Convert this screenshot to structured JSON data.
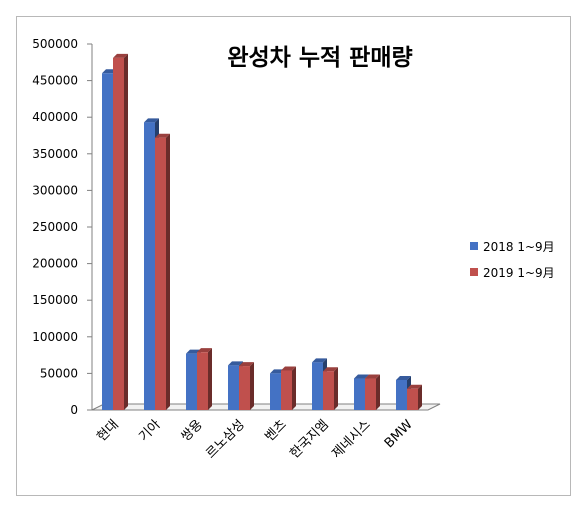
{
  "chart_data": {
    "type": "bar",
    "title": "완성차 누적 판매량",
    "categories": [
      "현대",
      "기아",
      "쌍용",
      "르노삼성",
      "벤츠",
      "한국지엠",
      "제네시스",
      "BMW"
    ],
    "series": [
      {
        "name": "2018 1~9月",
        "color": "#4472c4",
        "values": [
          460000,
          393000,
          77000,
          61000,
          50000,
          65000,
          43000,
          41000
        ]
      },
      {
        "name": "2019 1~9月",
        "color": "#c0504d",
        "values": [
          481000,
          372000,
          79000,
          60000,
          54000,
          53000,
          43000,
          29000
        ]
      }
    ],
    "ylim": [
      0,
      500000
    ],
    "yticks": [
      "0",
      "50000",
      "100000",
      "150000",
      "200000",
      "250000",
      "300000",
      "350000",
      "400000",
      "450000",
      "500000"
    ],
    "grid": false,
    "legend": "right",
    "style": "3d-clustered-column"
  }
}
